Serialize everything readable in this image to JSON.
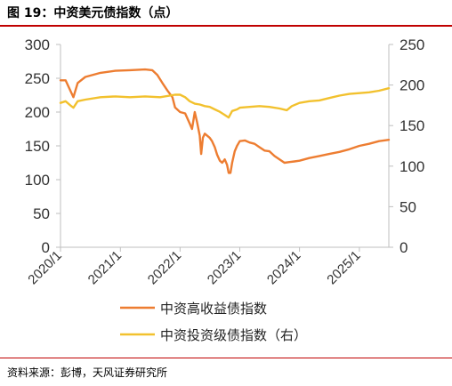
{
  "header": {
    "title": "图 19：中资美元债指数（点）"
  },
  "footer": {
    "source": "资料来源：彭博，天风证券研究所"
  },
  "colors": {
    "high_yield": "#ED7D31",
    "investment_grade": "#F2C12E",
    "title_rule": "#C00000"
  },
  "chart_data": {
    "type": "line",
    "title": "",
    "x_range": [
      "2020-01-01",
      "2025-06-30"
    ],
    "xticks": [
      "2020/1",
      "2021/1",
      "2022/1",
      "2023/1",
      "2024/1",
      "2025/1"
    ],
    "y_left": {
      "range": [
        0,
        300
      ],
      "ticks": [
        0,
        50,
        100,
        150,
        200,
        250,
        300
      ]
    },
    "y_right": {
      "range": [
        0,
        250
      ],
      "ticks": [
        0,
        50,
        100,
        150,
        200,
        250
      ]
    },
    "grid": false,
    "legend_position": "bottom",
    "series": [
      {
        "name": "中资高收益债指数",
        "axis": "left",
        "color": "#ED7D31",
        "points": [
          [
            "2020-01-01",
            247
          ],
          [
            "2020-02-01",
            247
          ],
          [
            "2020-03-01",
            232
          ],
          [
            "2020-03-20",
            222
          ],
          [
            "2020-04-15",
            243
          ],
          [
            "2020-06-01",
            252
          ],
          [
            "2020-09-01",
            258
          ],
          [
            "2020-12-01",
            261
          ],
          [
            "2021-03-01",
            262
          ],
          [
            "2021-06-01",
            263
          ],
          [
            "2021-07-15",
            262
          ],
          [
            "2021-08-15",
            255
          ],
          [
            "2021-09-15",
            243
          ],
          [
            "2021-10-15",
            232
          ],
          [
            "2021-11-15",
            222
          ],
          [
            "2021-12-01",
            207
          ],
          [
            "2022-01-01",
            200
          ],
          [
            "2022-02-01",
            198
          ],
          [
            "2022-03-01",
            183
          ],
          [
            "2022-03-15",
            175
          ],
          [
            "2022-04-01",
            200
          ],
          [
            "2022-04-15",
            185
          ],
          [
            "2022-05-01",
            165
          ],
          [
            "2022-05-10",
            138
          ],
          [
            "2022-05-20",
            162
          ],
          [
            "2022-06-01",
            168
          ],
          [
            "2022-07-01",
            162
          ],
          [
            "2022-07-15",
            157
          ],
          [
            "2022-08-01",
            148
          ],
          [
            "2022-08-15",
            137
          ],
          [
            "2022-09-01",
            128
          ],
          [
            "2022-09-15",
            125
          ],
          [
            "2022-10-01",
            130
          ],
          [
            "2022-10-15",
            122
          ],
          [
            "2022-10-25",
            110
          ],
          [
            "2022-11-05",
            110
          ],
          [
            "2022-11-15",
            125
          ],
          [
            "2022-12-01",
            142
          ],
          [
            "2022-12-15",
            150
          ],
          [
            "2023-01-01",
            157
          ],
          [
            "2023-02-01",
            158
          ],
          [
            "2023-03-01",
            155
          ],
          [
            "2023-04-01",
            153
          ],
          [
            "2023-05-01",
            148
          ],
          [
            "2023-06-01",
            143
          ],
          [
            "2023-07-01",
            142
          ],
          [
            "2023-08-01",
            135
          ],
          [
            "2023-09-01",
            130
          ],
          [
            "2023-10-01",
            125
          ],
          [
            "2023-11-01",
            126
          ],
          [
            "2023-12-01",
            127
          ],
          [
            "2024-01-01",
            128
          ],
          [
            "2024-03-01",
            132
          ],
          [
            "2024-05-01",
            135
          ],
          [
            "2024-07-01",
            138
          ],
          [
            "2024-09-01",
            141
          ],
          [
            "2024-11-01",
            145
          ],
          [
            "2025-01-01",
            150
          ],
          [
            "2025-03-01",
            153
          ],
          [
            "2025-05-01",
            157
          ],
          [
            "2025-06-30",
            159
          ]
        ]
      },
      {
        "name": "中资投资级债指数（右）",
        "axis": "right",
        "color": "#F2C12E",
        "points": [
          [
            "2020-01-01",
            178
          ],
          [
            "2020-02-01",
            180
          ],
          [
            "2020-03-01",
            175
          ],
          [
            "2020-03-20",
            172
          ],
          [
            "2020-04-15",
            180
          ],
          [
            "2020-06-01",
            182
          ],
          [
            "2020-09-01",
            185
          ],
          [
            "2020-12-01",
            186
          ],
          [
            "2021-03-01",
            185
          ],
          [
            "2021-06-01",
            186
          ],
          [
            "2021-09-01",
            185
          ],
          [
            "2021-12-01",
            188
          ],
          [
            "2022-01-01",
            188
          ],
          [
            "2022-02-01",
            185
          ],
          [
            "2022-03-01",
            180
          ],
          [
            "2022-04-01",
            177
          ],
          [
            "2022-05-01",
            176
          ],
          [
            "2022-06-01",
            174
          ],
          [
            "2022-07-01",
            173
          ],
          [
            "2022-08-01",
            170
          ],
          [
            "2022-09-01",
            167
          ],
          [
            "2022-10-01",
            163
          ],
          [
            "2022-10-25",
            160
          ],
          [
            "2022-11-15",
            168
          ],
          [
            "2022-12-15",
            170
          ],
          [
            "2023-01-01",
            172
          ],
          [
            "2023-03-01",
            173
          ],
          [
            "2023-05-01",
            174
          ],
          [
            "2023-07-01",
            173
          ],
          [
            "2023-09-01",
            171
          ],
          [
            "2023-10-15",
            169
          ],
          [
            "2023-11-15",
            174
          ],
          [
            "2024-01-01",
            178
          ],
          [
            "2024-03-01",
            180
          ],
          [
            "2024-05-01",
            181
          ],
          [
            "2024-07-01",
            184
          ],
          [
            "2024-09-01",
            187
          ],
          [
            "2024-11-01",
            189
          ],
          [
            "2025-01-01",
            190
          ],
          [
            "2025-03-01",
            191
          ],
          [
            "2025-05-01",
            193
          ],
          [
            "2025-06-30",
            196
          ]
        ]
      }
    ]
  }
}
